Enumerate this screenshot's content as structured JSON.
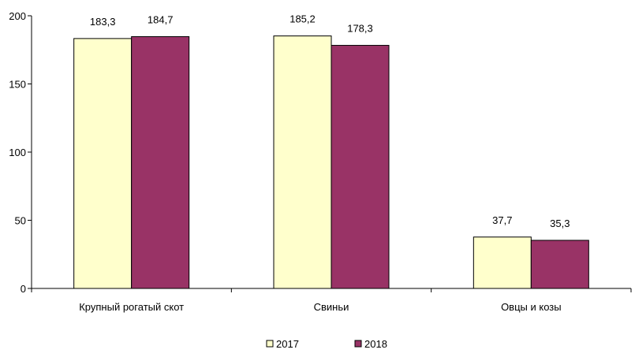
{
  "chart_data": {
    "type": "bar",
    "categories": [
      "Крупный рогатый скот",
      "Свиньи",
      "Овцы и козы"
    ],
    "series": [
      {
        "name": "2017",
        "values": [
          183.3,
          185.2,
          37.7
        ],
        "labels": [
          "183,3",
          "185,2",
          "37,7"
        ],
        "color": "#FFFFCC"
      },
      {
        "name": "2018",
        "values": [
          184.7,
          178.3,
          35.3
        ],
        "labels": [
          "184,7",
          "178,3",
          "35,3"
        ],
        "color": "#993366"
      }
    ],
    "ylim": [
      0,
      200
    ],
    "yticks": [
      0,
      50,
      100,
      150,
      200
    ],
    "ytick_labels": [
      "0",
      "50",
      "100",
      "150",
      "200"
    ],
    "title": "",
    "xlabel": "",
    "ylabel": "",
    "grid": false,
    "legend_position": "bottom-center"
  }
}
